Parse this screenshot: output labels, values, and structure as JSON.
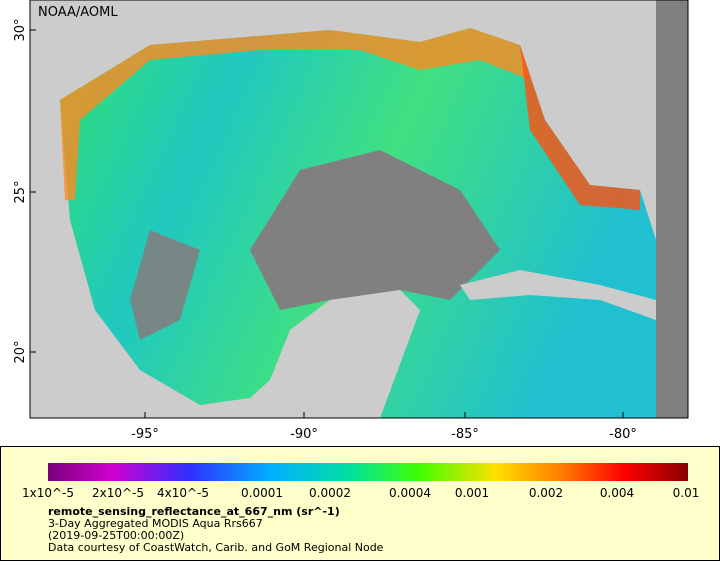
{
  "header": {
    "credit": "NOAA/AOML"
  },
  "map": {
    "lat_labels": [
      "30°",
      "25°",
      "20°"
    ],
    "lon_labels": [
      "-95°",
      "-90°",
      "-85°",
      "-80°"
    ]
  },
  "colorbar": {
    "labels": [
      "1x10^-5",
      "2x10^-5",
      "4x10^-5",
      "0.0001",
      "0.0002",
      "0.0004",
      "0.001",
      "0.002",
      "0.004",
      "0.01"
    ]
  },
  "caption": {
    "variable": "remote_sensing_reflectance_at_667_nm (sr^-1)",
    "lines": [
      "3-Day Aggregated MODIS Aqua Rrs667",
      "(2019-09-25T00:00:00Z)",
      "Data courtesy of CoastWatch, Carib. and GoM Regional Node"
    ]
  }
}
